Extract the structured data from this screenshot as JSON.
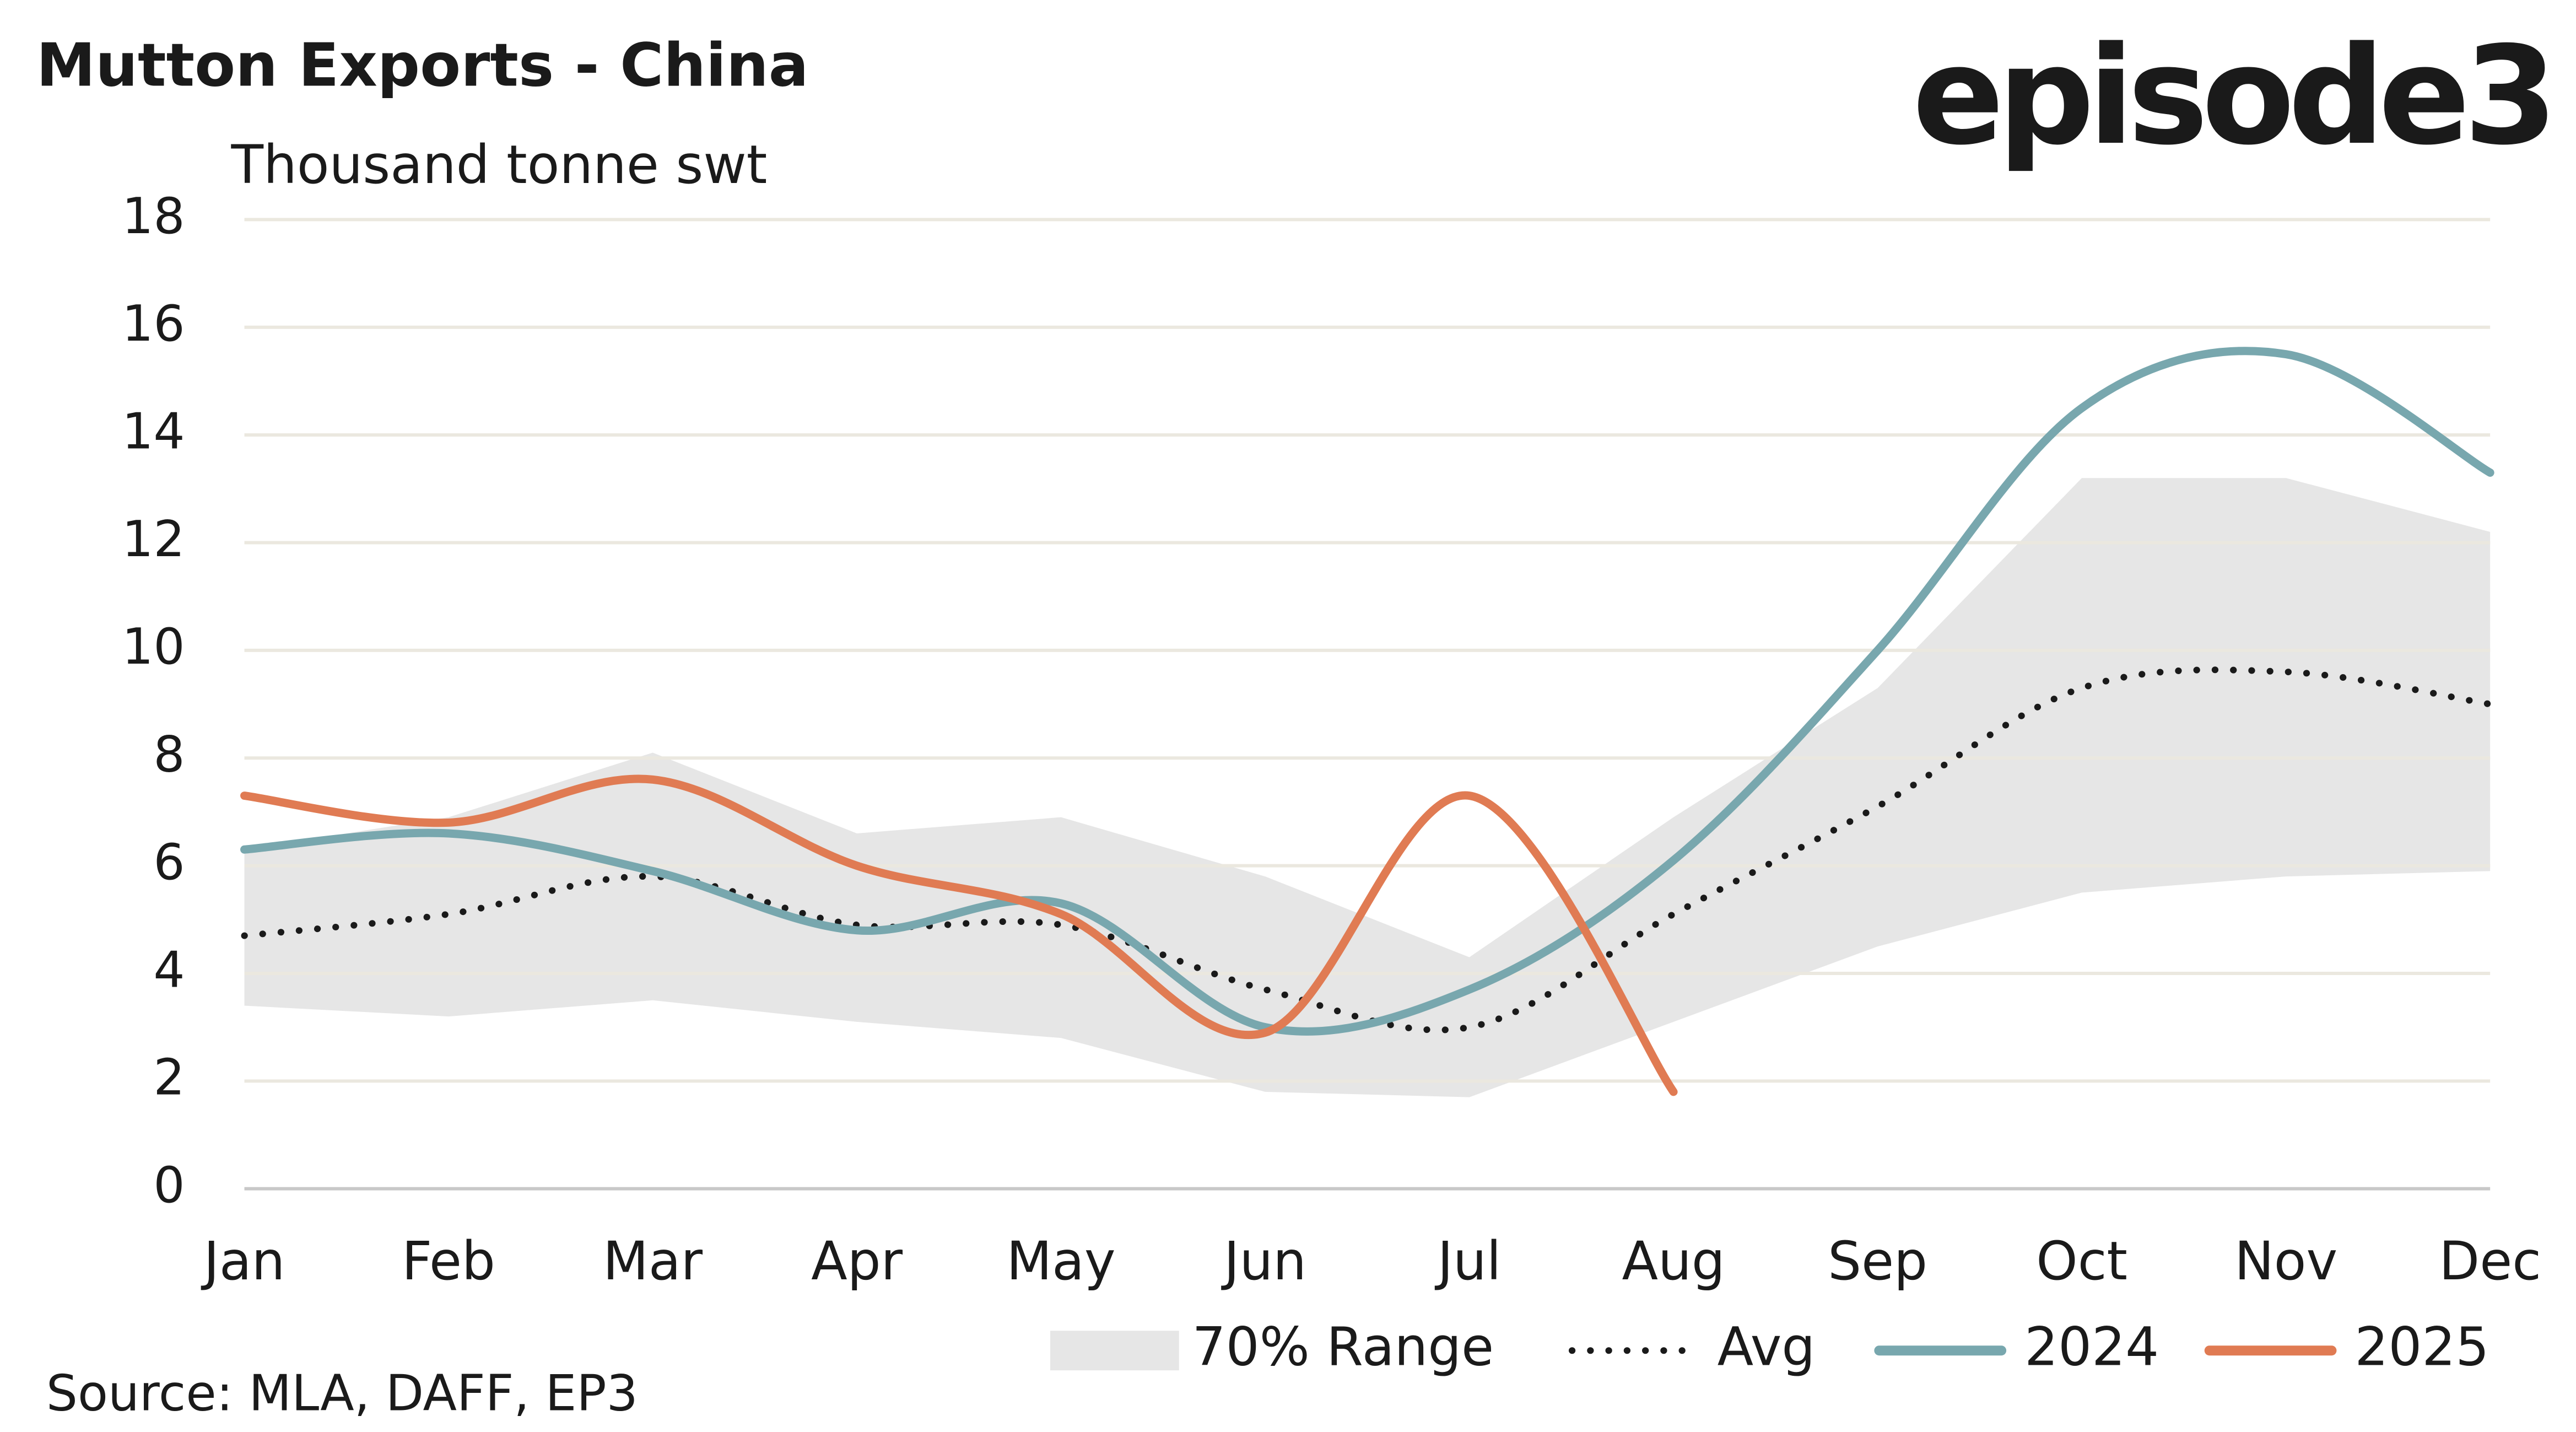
{
  "chart_data": {
    "type": "line",
    "title": "Mutton Exports - China",
    "subtitle": "Thousand tonne swt",
    "logo": "episode3",
    "source": "Source: MLA, DAFF, EP3",
    "categories": [
      "Jan",
      "Feb",
      "Mar",
      "Apr",
      "May",
      "Jun",
      "Jul",
      "Aug",
      "Sep",
      "Oct",
      "Nov",
      "Dec"
    ],
    "range": {
      "name": "70% Range",
      "color": "#e6e6e6",
      "low": [
        3.4,
        3.2,
        3.5,
        3.1,
        2.8,
        1.8,
        1.7,
        3.1,
        4.5,
        5.5,
        5.8,
        5.9
      ],
      "high": [
        6.3,
        6.9,
        8.1,
        6.6,
        6.9,
        5.8,
        4.3,
        6.9,
        9.3,
        13.2,
        13.2,
        12.2
      ]
    },
    "series": [
      {
        "name": "Avg",
        "color": "#1a1a1a",
        "dash": "dotted",
        "values": [
          4.7,
          5.1,
          5.8,
          4.9,
          4.9,
          3.7,
          3.0,
          5.1,
          7.1,
          9.3,
          9.6,
          9.0
        ]
      },
      {
        "name": "2024",
        "color": "#78a7ae",
        "values": [
          6.3,
          6.6,
          5.9,
          4.8,
          5.3,
          3.0,
          3.7,
          6.1,
          10.0,
          14.5,
          15.5,
          13.3
        ]
      },
      {
        "name": "2025",
        "color": "#e07b53",
        "values": [
          7.3,
          6.8,
          7.6,
          6.0,
          5.1,
          2.9,
          7.3,
          1.8,
          null,
          null,
          null,
          null
        ]
      }
    ],
    "ylim": [
      0,
      18
    ],
    "yticks": [
      0,
      2,
      4,
      6,
      8,
      10,
      12,
      14,
      16,
      18
    ],
    "grid": true
  }
}
